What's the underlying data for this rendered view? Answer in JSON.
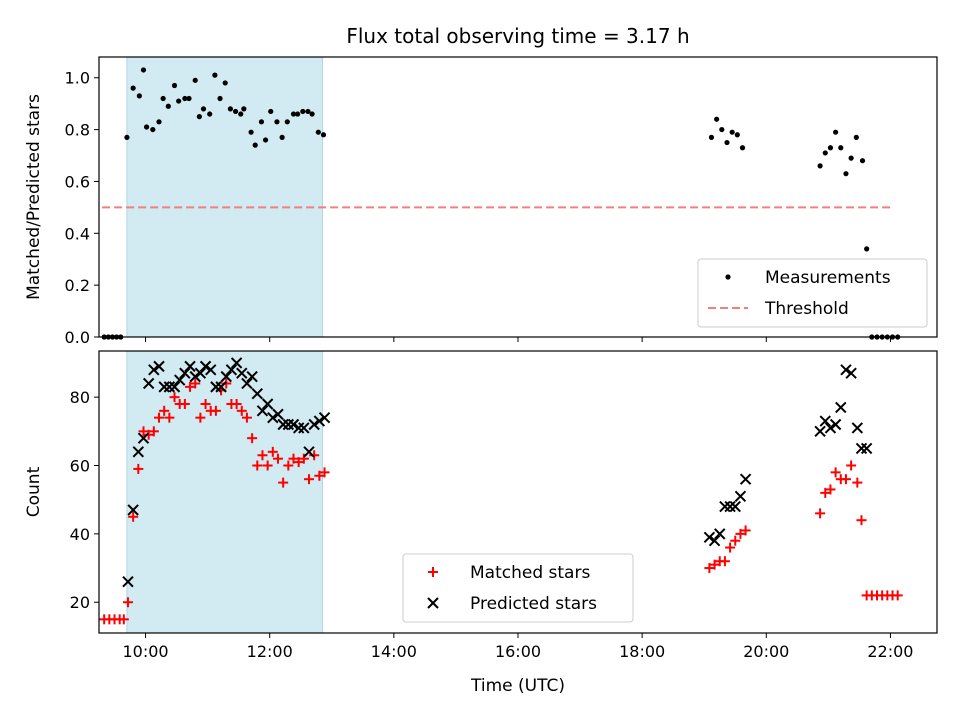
{
  "chart_data": [
    {
      "type": "scatter",
      "title": "Flux total observing time = 3.17 h",
      "xlabel": "",
      "ylabel": "Matched/Predicted stars",
      "xlim": [
        "09:15",
        "22:45"
      ],
      "ylim": [
        0,
        1.08
      ],
      "yticks": [
        0.0,
        0.2,
        0.4,
        0.6,
        0.8,
        1.0
      ],
      "ytick_labels": [
        "0.0",
        "0.2",
        "0.4",
        "0.6",
        "0.8",
        "1.0"
      ],
      "highlight_span": [
        "09:42",
        "12:51"
      ],
      "highlight_color": "#add8e6",
      "legend": {
        "position": "lower-right"
      },
      "threshold": {
        "name": "Threshold",
        "y": 0.5,
        "x_range": [
          "09:18",
          "22:00"
        ],
        "color": "#f08080",
        "style": "dashed"
      },
      "series": [
        {
          "name": "Measurements",
          "color": "#000000",
          "marker": "dot",
          "points": [
            [
              "09:20",
              0.0
            ],
            [
              "09:24",
              0.0
            ],
            [
              "09:28",
              0.0
            ],
            [
              "09:32",
              0.0
            ],
            [
              "09:36",
              0.0
            ],
            [
              "09:42",
              0.77
            ],
            [
              "09:48",
              0.96
            ],
            [
              "09:54",
              0.93
            ],
            [
              "09:58",
              1.03
            ],
            [
              "10:01",
              0.81
            ],
            [
              "10:07",
              0.8
            ],
            [
              "10:13",
              0.83
            ],
            [
              "10:17",
              0.92
            ],
            [
              "10:22",
              0.89
            ],
            [
              "10:28",
              0.97
            ],
            [
              "10:32",
              0.91
            ],
            [
              "10:38",
              0.92
            ],
            [
              "10:42",
              0.92
            ],
            [
              "10:48",
              0.99
            ],
            [
              "10:52",
              0.85
            ],
            [
              "10:56",
              0.88
            ],
            [
              "11:02",
              0.86
            ],
            [
              "11:07",
              1.01
            ],
            [
              "11:12",
              0.92
            ],
            [
              "11:17",
              0.98
            ],
            [
              "11:22",
              0.88
            ],
            [
              "11:27",
              0.87
            ],
            [
              "11:32",
              0.86
            ],
            [
              "11:35",
              0.88
            ],
            [
              "11:42",
              0.79
            ],
            [
              "11:46",
              0.74
            ],
            [
              "11:52",
              0.83
            ],
            [
              "11:56",
              0.76
            ],
            [
              "12:01",
              0.87
            ],
            [
              "12:07",
              0.83
            ],
            [
              "12:12",
              0.77
            ],
            [
              "12:17",
              0.83
            ],
            [
              "12:23",
              0.86
            ],
            [
              "12:27",
              0.86
            ],
            [
              "12:32",
              0.87
            ],
            [
              "12:37",
              0.87
            ],
            [
              "12:41",
              0.86
            ],
            [
              "12:47",
              0.79
            ],
            [
              "12:52",
              0.78
            ],
            [
              "19:07",
              0.77
            ],
            [
              "19:12",
              0.84
            ],
            [
              "19:17",
              0.8
            ],
            [
              "19:22",
              0.75
            ],
            [
              "19:27",
              0.79
            ],
            [
              "19:32",
              0.78
            ],
            [
              "19:37",
              0.73
            ],
            [
              "20:52",
              0.66
            ],
            [
              "20:57",
              0.71
            ],
            [
              "21:02",
              0.73
            ],
            [
              "21:07",
              0.79
            ],
            [
              "21:12",
              0.73
            ],
            [
              "21:17",
              0.63
            ],
            [
              "21:22",
              0.69
            ],
            [
              "21:27",
              0.77
            ],
            [
              "21:33",
              0.68
            ],
            [
              "21:37",
              0.34
            ],
            [
              "21:42",
              0.0
            ],
            [
              "21:47",
              0.0
            ],
            [
              "21:52",
              0.0
            ],
            [
              "21:57",
              0.0
            ],
            [
              "22:02",
              0.0
            ],
            [
              "22:07",
              0.0
            ]
          ]
        }
      ]
    },
    {
      "type": "scatter",
      "title": "",
      "xlabel": "Time (UTC)",
      "ylabel": "Count",
      "xlim": [
        "09:15",
        "22:45"
      ],
      "ylim": [
        11,
        93.5
      ],
      "yticks": [
        20,
        40,
        60,
        80
      ],
      "ytick_labels": [
        "20",
        "40",
        "60",
        "80"
      ],
      "xticks": [
        "10:00",
        "12:00",
        "14:00",
        "16:00",
        "18:00",
        "20:00",
        "22:00"
      ],
      "xtick_labels": [
        "10:00",
        "12:00",
        "14:00",
        "16:00",
        "18:00",
        "20:00",
        "22:00"
      ],
      "highlight_span": [
        "09:42",
        "12:51"
      ],
      "highlight_color": "#add8e6",
      "legend": {
        "position": "lower-center"
      },
      "series": [
        {
          "name": "Matched stars",
          "color": "#ff0000",
          "marker": "plus",
          "points": [
            [
              "09:20",
              15
            ],
            [
              "09:25",
              15
            ],
            [
              "09:30",
              15
            ],
            [
              "09:35",
              15
            ],
            [
              "09:39",
              15
            ],
            [
              "09:43",
              20
            ],
            [
              "09:48",
              45
            ],
            [
              "09:53",
              59
            ],
            [
              "09:58",
              70
            ],
            [
              "10:03",
              69
            ],
            [
              "10:08",
              70
            ],
            [
              "10:13",
              74
            ],
            [
              "10:18",
              76
            ],
            [
              "10:23",
              74
            ],
            [
              "10:28",
              80
            ],
            [
              "10:33",
              78
            ],
            [
              "10:38",
              78
            ],
            [
              "10:43",
              83
            ],
            [
              "10:48",
              84
            ],
            [
              "10:53",
              74
            ],
            [
              "10:58",
              78
            ],
            [
              "11:03",
              76
            ],
            [
              "11:08",
              76
            ],
            [
              "11:13",
              82
            ],
            [
              "11:18",
              84
            ],
            [
              "11:23",
              78
            ],
            [
              "11:28",
              78
            ],
            [
              "11:33",
              76
            ],
            [
              "11:38",
              74
            ],
            [
              "11:43",
              68
            ],
            [
              "11:48",
              60
            ],
            [
              "11:53",
              63
            ],
            [
              "11:58",
              60
            ],
            [
              "12:03",
              64
            ],
            [
              "12:08",
              62
            ],
            [
              "12:13",
              55
            ],
            [
              "12:18",
              60
            ],
            [
              "12:23",
              62
            ],
            [
              "12:28",
              61
            ],
            [
              "12:33",
              62
            ],
            [
              "12:38",
              56
            ],
            [
              "12:43",
              63
            ],
            [
              "12:48",
              57
            ],
            [
              "12:53",
              58
            ],
            [
              "19:05",
              30
            ],
            [
              "19:10",
              31
            ],
            [
              "19:15",
              32
            ],
            [
              "19:20",
              32
            ],
            [
              "19:25",
              36
            ],
            [
              "19:30",
              38
            ],
            [
              "19:35",
              40
            ],
            [
              "19:40",
              41
            ],
            [
              "20:52",
              46
            ],
            [
              "20:57",
              52
            ],
            [
              "21:02",
              53
            ],
            [
              "21:07",
              58
            ],
            [
              "21:12",
              56
            ],
            [
              "21:17",
              56
            ],
            [
              "21:22",
              60
            ],
            [
              "21:28",
              55
            ],
            [
              "21:32",
              44
            ],
            [
              "21:37",
              22
            ],
            [
              "21:42",
              22
            ],
            [
              "21:47",
              22
            ],
            [
              "21:52",
              22
            ],
            [
              "21:57",
              22
            ],
            [
              "22:02",
              22
            ],
            [
              "22:07",
              22
            ]
          ]
        },
        {
          "name": "Predicted stars",
          "color": "#000000",
          "marker": "x",
          "points": [
            [
              "09:43",
              26
            ],
            [
              "09:48",
              47
            ],
            [
              "09:53",
              64
            ],
            [
              "09:58",
              68
            ],
            [
              "10:03",
              84
            ],
            [
              "10:08",
              88
            ],
            [
              "10:13",
              89
            ],
            [
              "10:18",
              83
            ],
            [
              "10:23",
              83
            ],
            [
              "10:28",
              83
            ],
            [
              "10:33",
              85
            ],
            [
              "10:38",
              87
            ],
            [
              "10:43",
              89
            ],
            [
              "10:48",
              86
            ],
            [
              "10:53",
              87
            ],
            [
              "10:58",
              89
            ],
            [
              "11:03",
              88
            ],
            [
              "11:08",
              83
            ],
            [
              "11:13",
              83
            ],
            [
              "11:18",
              86
            ],
            [
              "11:23",
              88
            ],
            [
              "11:28",
              90
            ],
            [
              "11:33",
              87
            ],
            [
              "11:38",
              84
            ],
            [
              "11:43",
              86
            ],
            [
              "11:48",
              81
            ],
            [
              "11:53",
              76
            ],
            [
              "11:58",
              78
            ],
            [
              "12:03",
              74
            ],
            [
              "12:08",
              75
            ],
            [
              "12:13",
              72
            ],
            [
              "12:18",
              72
            ],
            [
              "12:23",
              72
            ],
            [
              "12:28",
              71
            ],
            [
              "12:33",
              71
            ],
            [
              "12:38",
              64
            ],
            [
              "12:43",
              72
            ],
            [
              "12:48",
              73
            ],
            [
              "12:53",
              74
            ],
            [
              "19:05",
              39
            ],
            [
              "19:10",
              38
            ],
            [
              "19:15",
              40
            ],
            [
              "19:20",
              48
            ],
            [
              "19:25",
              48
            ],
            [
              "19:30",
              48
            ],
            [
              "19:35",
              51
            ],
            [
              "19:40",
              56
            ],
            [
              "20:52",
              70
            ],
            [
              "20:57",
              73
            ],
            [
              "21:02",
              71
            ],
            [
              "21:07",
              72
            ],
            [
              "21:12",
              77
            ],
            [
              "21:17",
              88
            ],
            [
              "21:22",
              87
            ],
            [
              "21:28",
              71
            ],
            [
              "21:32",
              65
            ],
            [
              "21:37",
              65
            ]
          ]
        }
      ]
    }
  ]
}
